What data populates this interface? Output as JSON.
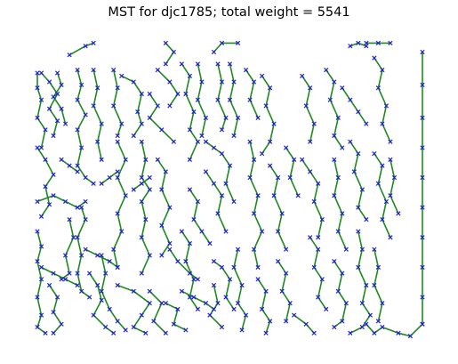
{
  "chart_data": {
    "type": "scatter",
    "title": "MST for djc1785; total weight = 5541",
    "axes_visible": false,
    "grid": false,
    "node_marker": "x",
    "node_color": "#1f1fd0",
    "edge_color": "#1e8a1e",
    "xlim": [
      0,
      100
    ],
    "ylim": [
      0,
      100
    ],
    "edges_polylines": [
      [
        [
          2,
          89
        ],
        [
          2,
          84
        ],
        [
          3,
          80
        ],
        [
          2,
          74
        ],
        [
          4,
          70
        ],
        [
          3,
          64
        ]
      ],
      [
        [
          3,
          89
        ],
        [
          5,
          86
        ],
        [
          7,
          82
        ],
        [
          5,
          77
        ],
        [
          7,
          73
        ],
        [
          6,
          68
        ]
      ],
      [
        [
          7,
          89
        ],
        [
          8,
          85
        ],
        [
          6,
          81
        ],
        [
          8,
          77
        ],
        [
          9,
          72
        ]
      ],
      [
        [
          2,
          64
        ],
        [
          4,
          60
        ],
        [
          6,
          55
        ],
        [
          4,
          51
        ],
        [
          5,
          45
        ],
        [
          3,
          41
        ]
      ],
      [
        [
          2,
          46
        ],
        [
          6,
          48
        ],
        [
          9,
          46
        ],
        [
          12,
          44
        ],
        [
          14,
          46
        ]
      ],
      [
        [
          2,
          36
        ],
        [
          3,
          31
        ],
        [
          2,
          26
        ],
        [
          3,
          20
        ],
        [
          2,
          14
        ],
        [
          3,
          8
        ],
        [
          2,
          4
        ],
        [
          4,
          2
        ]
      ],
      [
        [
          5,
          18
        ],
        [
          7,
          14
        ],
        [
          6,
          9
        ],
        [
          8,
          5
        ],
        [
          6,
          2
        ]
      ],
      [
        [
          3,
          24
        ],
        [
          6,
          22
        ],
        [
          9,
          20
        ],
        [
          12,
          18
        ]
      ],
      [
        [
          10,
          95
        ],
        [
          14,
          98
        ],
        [
          16,
          99
        ]
      ],
      [
        [
          12,
          90
        ],
        [
          13,
          85
        ],
        [
          12,
          80
        ],
        [
          14,
          75
        ],
        [
          12,
          70
        ],
        [
          13,
          64
        ],
        [
          12,
          58
        ],
        [
          14,
          54
        ],
        [
          16,
          52
        ]
      ],
      [
        [
          16,
          90
        ],
        [
          17,
          84
        ],
        [
          16,
          78
        ],
        [
          18,
          72
        ],
        [
          17,
          66
        ],
        [
          18,
          60
        ]
      ],
      [
        [
          13,
          44
        ],
        [
          14,
          40
        ],
        [
          12,
          34
        ],
        [
          13,
          28
        ],
        [
          12,
          22
        ],
        [
          13,
          16
        ],
        [
          15,
          14
        ]
      ],
      [
        [
          10,
          40
        ],
        [
          11,
          34
        ],
        [
          9,
          28
        ],
        [
          10,
          22
        ],
        [
          8,
          20
        ]
      ],
      [
        [
          14,
          30
        ],
        [
          17,
          28
        ],
        [
          20,
          26
        ],
        [
          22,
          24
        ]
      ],
      [
        [
          15,
          22
        ],
        [
          17,
          18
        ],
        [
          18,
          13
        ],
        [
          16,
          8
        ],
        [
          19,
          4
        ],
        [
          21,
          2
        ]
      ],
      [
        [
          21,
          90
        ],
        [
          22,
          84
        ],
        [
          21,
          78
        ],
        [
          23,
          72
        ],
        [
          22,
          68
        ]
      ],
      [
        [
          23,
          88
        ],
        [
          26,
          86
        ],
        [
          28,
          82
        ],
        [
          27,
          76
        ],
        [
          28,
          72
        ],
        [
          26,
          68
        ]
      ],
      [
        [
          22,
          66
        ],
        [
          24,
          60
        ],
        [
          22,
          54
        ],
        [
          24,
          48
        ],
        [
          22,
          42
        ],
        [
          23,
          36
        ],
        [
          21,
          30
        ],
        [
          22,
          24
        ]
      ],
      [
        [
          18,
          28
        ],
        [
          19,
          22
        ],
        [
          18,
          16
        ],
        [
          20,
          10
        ],
        [
          22,
          6
        ],
        [
          24,
          3
        ]
      ],
      [
        [
          28,
          66
        ],
        [
          29,
          60
        ],
        [
          28,
          54
        ],
        [
          30,
          50
        ],
        [
          28,
          46
        ],
        [
          29,
          40
        ],
        [
          28,
          34
        ],
        [
          30,
          28
        ],
        [
          28,
          22
        ]
      ],
      [
        [
          22,
          18
        ],
        [
          26,
          16
        ],
        [
          30,
          12
        ],
        [
          28,
          8
        ],
        [
          26,
          4
        ],
        [
          29,
          2
        ]
      ],
      [
        [
          30,
          82
        ],
        [
          32,
          78
        ],
        [
          30,
          74
        ],
        [
          33,
          70
        ],
        [
          36,
          66
        ]
      ],
      [
        [
          34,
          92
        ],
        [
          36,
          96
        ],
        [
          34,
          99
        ]
      ],
      [
        [
          32,
          90
        ],
        [
          35,
          86
        ],
        [
          37,
          82
        ],
        [
          35,
          78
        ]
      ],
      [
        [
          32,
          60
        ],
        [
          34,
          56
        ],
        [
          33,
          50
        ],
        [
          35,
          44
        ],
        [
          33,
          38
        ],
        [
          35,
          32
        ],
        [
          33,
          28
        ]
      ],
      [
        [
          35,
          30
        ],
        [
          37,
          26
        ],
        [
          40,
          22
        ],
        [
          42,
          20
        ]
      ],
      [
        [
          30,
          16
        ],
        [
          33,
          12
        ],
        [
          31,
          6
        ],
        [
          34,
          2
        ]
      ],
      [
        [
          34,
          12
        ],
        [
          37,
          10
        ],
        [
          36,
          5
        ],
        [
          39,
          3
        ]
      ],
      [
        [
          38,
          92
        ],
        [
          40,
          88
        ],
        [
          39,
          82
        ],
        [
          41,
          76
        ],
        [
          40,
          70
        ],
        [
          42,
          66
        ],
        [
          40,
          60
        ]
      ],
      [
        [
          42,
          92
        ],
        [
          43,
          86
        ],
        [
          42,
          80
        ],
        [
          44,
          74
        ],
        [
          43,
          68
        ]
      ],
      [
        [
          40,
          50
        ],
        [
          42,
          46
        ],
        [
          41,
          40
        ],
        [
          43,
          36
        ],
        [
          45,
          32
        ]
      ],
      [
        [
          38,
          36
        ],
        [
          40,
          32
        ],
        [
          39,
          26
        ],
        [
          41,
          20
        ],
        [
          40,
          14
        ],
        [
          42,
          10
        ]
      ],
      [
        [
          38,
          16
        ],
        [
          41,
          14
        ],
        [
          44,
          12
        ],
        [
          46,
          10
        ]
      ],
      [
        [
          44,
          66
        ],
        [
          46,
          64
        ],
        [
          48,
          62
        ],
        [
          50,
          58
        ],
        [
          49,
          52
        ],
        [
          51,
          46
        ]
      ],
      [
        [
          44,
          56
        ],
        [
          46,
          52
        ],
        [
          48,
          48
        ],
        [
          47,
          42
        ],
        [
          49,
          36
        ]
      ],
      [
        [
          46,
          96
        ],
        [
          48,
          99
        ],
        [
          52,
          99
        ]
      ],
      [
        [
          47,
          92
        ],
        [
          48,
          86
        ],
        [
          47,
          80
        ],
        [
          49,
          74
        ],
        [
          48,
          70
        ]
      ],
      [
        [
          50,
          92
        ],
        [
          51,
          86
        ],
        [
          50,
          80
        ],
        [
          52,
          74
        ],
        [
          51,
          68
        ]
      ],
      [
        [
          46,
          26
        ],
        [
          48,
          24
        ],
        [
          50,
          20
        ],
        [
          49,
          14
        ],
        [
          51,
          10
        ]
      ],
      [
        [
          46,
          18
        ],
        [
          47,
          12
        ],
        [
          45,
          8
        ],
        [
          48,
          4
        ]
      ],
      [
        [
          52,
          30
        ],
        [
          51,
          24
        ],
        [
          53,
          18
        ],
        [
          52,
          12
        ],
        [
          54,
          8
        ],
        [
          53,
          3
        ]
      ],
      [
        [
          54,
          90
        ],
        [
          56,
          86
        ],
        [
          55,
          80
        ],
        [
          57,
          74
        ]
      ],
      [
        [
          58,
          88
        ],
        [
          60,
          84
        ],
        [
          59,
          78
        ],
        [
          61,
          72
        ],
        [
          60,
          66
        ],
        [
          58,
          62
        ]
      ],
      [
        [
          55,
          66
        ],
        [
          56,
          60
        ],
        [
          55,
          54
        ],
        [
          57,
          48
        ],
        [
          56,
          42
        ],
        [
          58,
          36
        ],
        [
          56,
          30
        ],
        [
          57,
          24
        ]
      ],
      [
        [
          57,
          20
        ],
        [
          59,
          16
        ],
        [
          58,
          10
        ],
        [
          60,
          6
        ],
        [
          59,
          2
        ]
      ],
      [
        [
          60,
          58
        ],
        [
          62,
          54
        ],
        [
          61,
          48
        ],
        [
          63,
          42
        ],
        [
          62,
          36
        ],
        [
          64,
          30
        ]
      ],
      [
        [
          62,
          26
        ],
        [
          64,
          22
        ],
        [
          63,
          16
        ],
        [
          65,
          12
        ],
        [
          64,
          6
        ]
      ],
      [
        [
          64,
          64
        ],
        [
          66,
          60
        ],
        [
          65,
          54
        ],
        [
          67,
          48
        ]
      ],
      [
        [
          68,
          88
        ],
        [
          70,
          84
        ],
        [
          69,
          78
        ],
        [
          71,
          72
        ],
        [
          70,
          66
        ]
      ],
      [
        [
          68,
          60
        ],
        [
          70,
          56
        ],
        [
          72,
          52
        ],
        [
          71,
          46
        ],
        [
          73,
          40
        ],
        [
          72,
          34
        ]
      ],
      [
        [
          70,
          34
        ],
        [
          72,
          30
        ],
        [
          71,
          24
        ],
        [
          73,
          20
        ],
        [
          72,
          14
        ],
        [
          74,
          10
        ]
      ],
      [
        [
          66,
          8
        ],
        [
          69,
          5
        ],
        [
          71,
          2
        ]
      ],
      [
        [
          74,
          90
        ],
        [
          76,
          86
        ],
        [
          75,
          80
        ],
        [
          77,
          74
        ],
        [
          76,
          68
        ],
        [
          78,
          64
        ]
      ],
      [
        [
          76,
          60
        ],
        [
          77,
          54
        ],
        [
          76,
          48
        ],
        [
          78,
          42
        ],
        [
          77,
          36
        ],
        [
          79,
          30
        ]
      ],
      [
        [
          76,
          26
        ],
        [
          78,
          22
        ],
        [
          77,
          16
        ],
        [
          79,
          12
        ],
        [
          78,
          6
        ],
        [
          76,
          4
        ]
      ],
      [
        [
          78,
          84
        ],
        [
          80,
          80
        ],
        [
          82,
          76
        ],
        [
          84,
          72
        ]
      ],
      [
        [
          80,
          66
        ],
        [
          82,
          62
        ],
        [
          81,
          56
        ],
        [
          83,
          50
        ],
        [
          82,
          44
        ],
        [
          84,
          40
        ]
      ],
      [
        [
          82,
          36
        ],
        [
          83,
          30
        ],
        [
          82,
          24
        ],
        [
          84,
          18
        ],
        [
          83,
          12
        ],
        [
          85,
          8
        ],
        [
          83,
          4
        ],
        [
          80,
          2
        ]
      ],
      [
        [
          80,
          98
        ],
        [
          82,
          99
        ],
        [
          84,
          98
        ]
      ],
      [
        [
          86,
          94
        ],
        [
          88,
          90
        ],
        [
          87,
          84
        ],
        [
          89,
          78
        ],
        [
          88,
          72
        ],
        [
          90,
          66
        ]
      ],
      [
        [
          86,
          62
        ],
        [
          88,
          58
        ],
        [
          87,
          52
        ],
        [
          89,
          46
        ],
        [
          88,
          40
        ],
        [
          90,
          34
        ]
      ],
      [
        [
          86,
          30
        ],
        [
          87,
          24
        ],
        [
          86,
          18
        ],
        [
          88,
          12
        ],
        [
          87,
          6
        ]
      ],
      [
        [
          84,
          99
        ],
        [
          87,
          99
        ],
        [
          90,
          99
        ]
      ],
      [
        [
          90,
          60
        ],
        [
          91,
          54
        ],
        [
          90,
          48
        ],
        [
          92,
          42
        ]
      ],
      [
        [
          84,
          5
        ],
        [
          86,
          2
        ],
        [
          88,
          4
        ],
        [
          92,
          2
        ],
        [
          95,
          1
        ],
        [
          98,
          5
        ]
      ],
      [
        [
          98,
          5
        ],
        [
          98,
          14
        ],
        [
          98,
          24
        ],
        [
          98,
          34
        ],
        [
          98,
          44
        ],
        [
          98,
          54
        ],
        [
          98,
          64
        ],
        [
          98,
          74
        ],
        [
          98,
          85
        ],
        [
          98,
          96
        ]
      ],
      [
        [
          8,
          60
        ],
        [
          10,
          58
        ],
        [
          12,
          56
        ]
      ],
      [
        [
          18,
          52
        ],
        [
          20,
          54
        ],
        [
          22,
          56
        ]
      ],
      [
        [
          26,
          50
        ],
        [
          28,
          52
        ],
        [
          30,
          54
        ]
      ]
    ]
  }
}
